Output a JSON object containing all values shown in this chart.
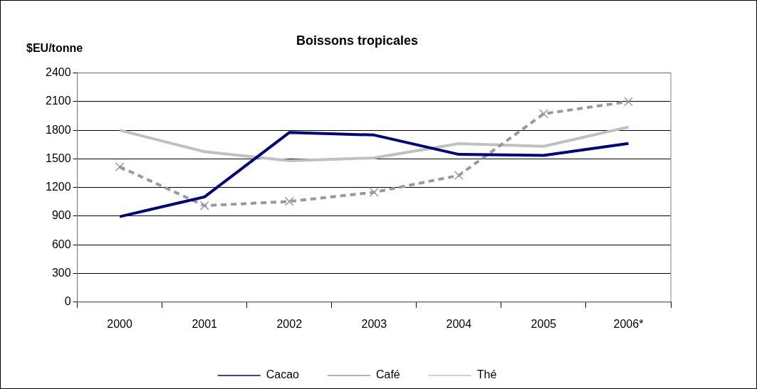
{
  "chart_data": {
    "type": "line",
    "title": "Boissons tropicales",
    "ylabel": "$EU/tonne",
    "categories": [
      "2000",
      "2001",
      "2002",
      "2003",
      "2004",
      "2005",
      "2006*"
    ],
    "series": [
      {
        "name": "Cacao",
        "color": "#000080",
        "values": [
          895,
          1102,
          1776,
          1750,
          1547,
          1537,
          1661
        ]
      },
      {
        "name": "Café",
        "color": "#999999",
        "values": [
          1417,
          1010,
          1054,
          1150,
          1327,
          1972,
          2100
        ],
        "marker": "cross",
        "line_style": "dashed"
      },
      {
        "name": "Thé",
        "color": "#c0c0c0",
        "values": [
          1800,
          1575,
          1480,
          1510,
          1660,
          1632,
          1834
        ]
      }
    ],
    "ylim": [
      0,
      2400
    ],
    "yticks": [
      0,
      300,
      600,
      900,
      1200,
      1500,
      1800,
      2100,
      2400
    ],
    "grid": "y",
    "legend": "bottom"
  }
}
